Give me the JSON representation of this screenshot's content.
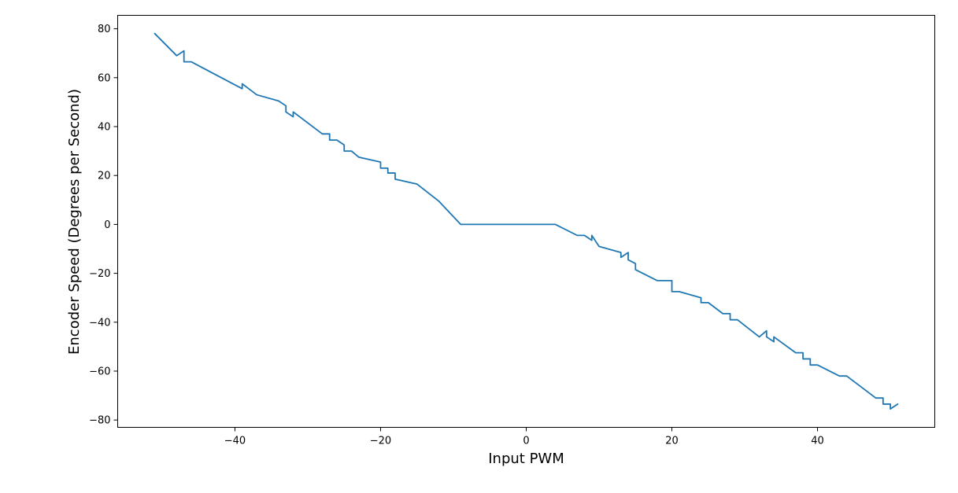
{
  "chart_data": {
    "type": "line",
    "title": "",
    "xlabel": "Input PWM",
    "ylabel": "Encoder Speed (Degrees per Second)",
    "xlim": [
      -56.1,
      56.1
    ],
    "ylim": [
      -83.0,
      85.5
    ],
    "xticks": [
      -40,
      -20,
      0,
      20,
      40
    ],
    "yticks": [
      -80,
      -60,
      -40,
      -20,
      0,
      20,
      40,
      60,
      80
    ],
    "xtick_labels": [
      "−40",
      "−20",
      "0",
      "20",
      "40"
    ],
    "ytick_labels": [
      "−80",
      "−60",
      "−40",
      "−20",
      "0",
      "20",
      "40",
      "60",
      "80"
    ],
    "grid": false,
    "color": "#1f77b4",
    "series": [
      {
        "x": [
          -51,
          -48,
          -47,
          -47,
          -46,
          -39,
          -39,
          -37,
          -34,
          -33,
          -33,
          -32,
          -32,
          -28,
          -27,
          -27,
          -26,
          -25,
          -25,
          -24,
          -23,
          -20,
          -20,
          -19,
          -19,
          -18,
          -18,
          -15,
          -12,
          -9,
          0,
          4,
          7,
          8,
          9,
          9,
          10,
          13,
          13,
          14,
          14,
          15,
          15,
          18,
          20,
          20,
          21,
          24,
          24,
          25,
          27,
          28,
          28,
          29,
          32,
          33,
          33,
          34,
          34,
          37,
          38,
          38,
          39,
          39,
          40,
          43,
          44,
          48,
          49,
          49,
          50,
          50,
          51
        ],
        "y": [
          78,
          69,
          71,
          66.5,
          66.5,
          55.5,
          57.5,
          53,
          50.5,
          48.5,
          46,
          44,
          46,
          37,
          37,
          34.5,
          34.5,
          32.5,
          30,
          30,
          27.5,
          25.5,
          23,
          23,
          21,
          21,
          18.5,
          16.5,
          9.5,
          0,
          0,
          0,
          -4.5,
          -4.5,
          -6.5,
          -4.5,
          -9,
          -11.5,
          -13.5,
          -11.5,
          -14.5,
          -16,
          -18.5,
          -23,
          -23,
          -27.5,
          -27.5,
          -30,
          -32,
          -32,
          -36.5,
          -36.5,
          -39,
          -39,
          -46,
          -43.5,
          -46,
          -48,
          -46,
          -52.5,
          -52.5,
          -55,
          -55,
          -57.5,
          -57.5,
          -62,
          -62,
          -71,
          -71,
          -73.5,
          -73.5,
          -75.5,
          -73.5
        ]
      }
    ]
  }
}
